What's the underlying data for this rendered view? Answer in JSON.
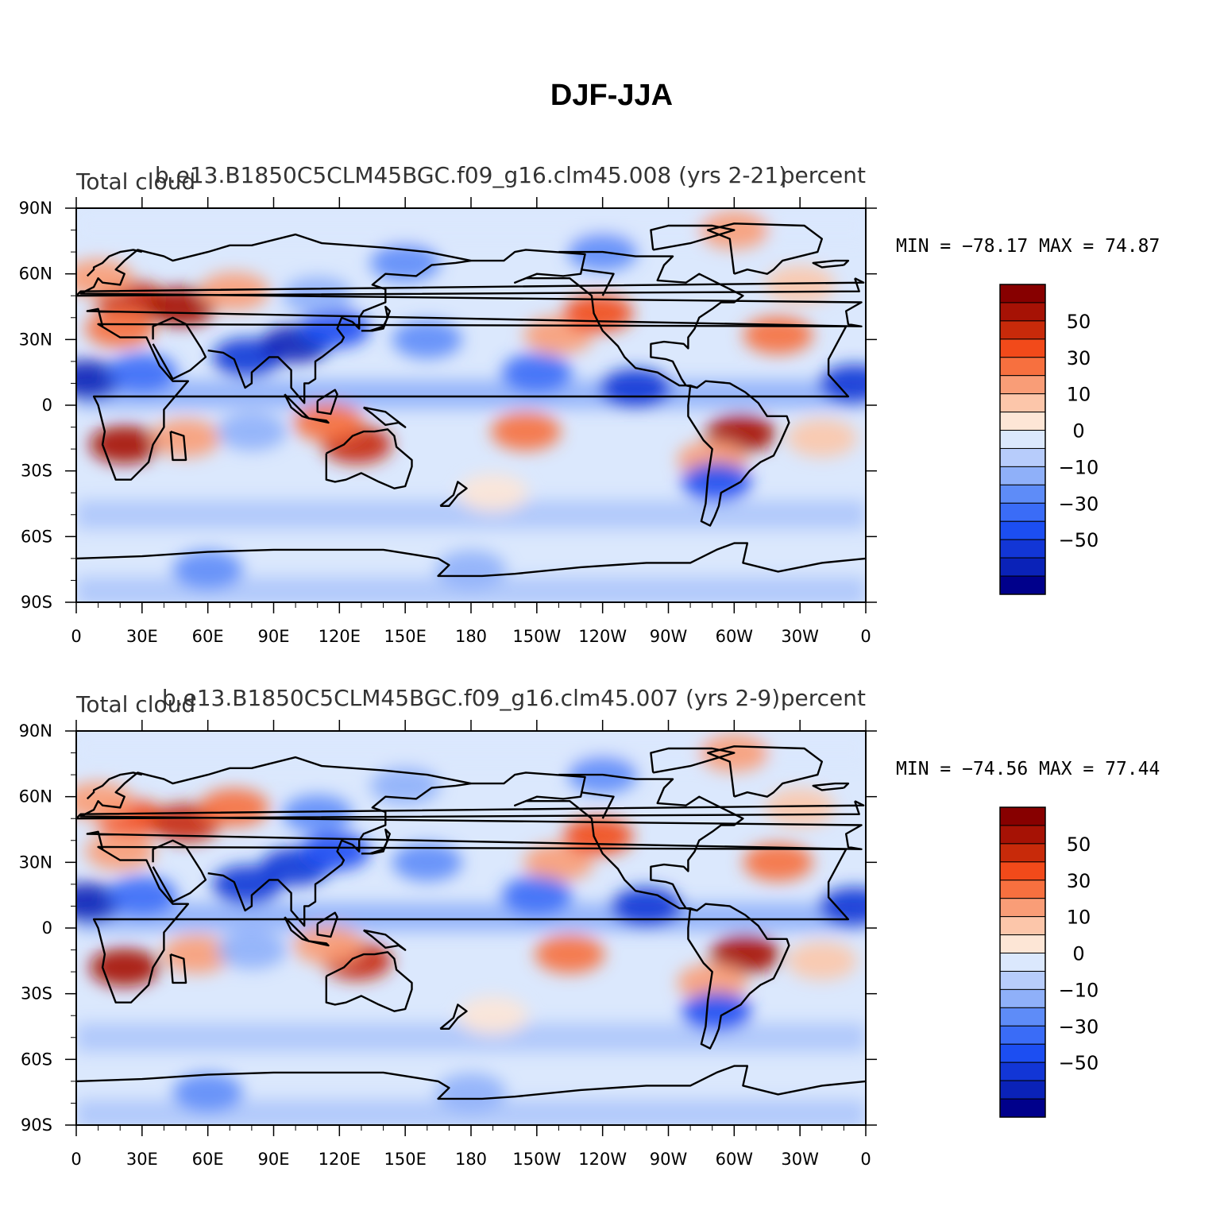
{
  "title": "DJF-JJA",
  "chart_data": [
    {
      "type": "heatmap",
      "subtitle": "b.e13.B1850C5CLM45BGC.f09_g16.clm45.008 (yrs 2-21)",
      "left_label": "Total cloud",
      "right_label": "percent",
      "stats": "MIN =  −78.17  MAX =   74.87",
      "x_ticks": [
        "0",
        "30E",
        "60E",
        "90E",
        "120E",
        "150E",
        "180",
        "150W",
        "120W",
        "90W",
        "60W",
        "30W",
        "0"
      ],
      "y_ticks": [
        "90N",
        "60N",
        "30N",
        "0",
        "30S",
        "60S",
        "90S"
      ],
      "xlim": [
        0,
        360
      ],
      "ylim": [
        -90,
        90
      ],
      "regions": [
        {
          "lon": 25,
          "lat": 48,
          "value": 60
        },
        {
          "lon": 48,
          "lat": 45,
          "value": 70
        },
        {
          "lon": 72,
          "lat": 52,
          "value": 35
        },
        {
          "lon": 10,
          "lat": 58,
          "value": 30
        },
        {
          "lon": 20,
          "lat": 35,
          "value": 40
        },
        {
          "lon": 5,
          "lat": 12,
          "value": -65
        },
        {
          "lon": 30,
          "lat": 15,
          "value": -40
        },
        {
          "lon": 78,
          "lat": 22,
          "value": -55
        },
        {
          "lon": 100,
          "lat": 28,
          "value": -65
        },
        {
          "lon": 118,
          "lat": 35,
          "value": -45
        },
        {
          "lon": 110,
          "lat": 50,
          "value": -20
        },
        {
          "lon": 22,
          "lat": -18,
          "value": 72
        },
        {
          "lon": 50,
          "lat": -15,
          "value": 30
        },
        {
          "lon": 80,
          "lat": -12,
          "value": -20
        },
        {
          "lon": 128,
          "lat": -18,
          "value": 60
        },
        {
          "lon": 115,
          "lat": -8,
          "value": 40
        },
        {
          "lon": 205,
          "lat": -12,
          "value": 45
        },
        {
          "lon": 220,
          "lat": 32,
          "value": 35
        },
        {
          "lon": 238,
          "lat": 42,
          "value": 55
        },
        {
          "lon": 210,
          "lat": 15,
          "value": -35
        },
        {
          "lon": 255,
          "lat": 8,
          "value": -60
        },
        {
          "lon": 303,
          "lat": -13,
          "value": 72
        },
        {
          "lon": 290,
          "lat": -25,
          "value": 30
        },
        {
          "lon": 292,
          "lat": -35,
          "value": -45
        },
        {
          "lon": 320,
          "lat": 32,
          "value": 40
        },
        {
          "lon": 330,
          "lat": 55,
          "value": 25
        },
        {
          "lon": 355,
          "lat": 10,
          "value": -60
        },
        {
          "lon": 160,
          "lat": 30,
          "value": -25
        },
        {
          "lon": 190,
          "lat": -40,
          "value": 10
        },
        {
          "lon": 340,
          "lat": -15,
          "value": 20
        },
        {
          "lon": 300,
          "lat": 80,
          "value": 30
        },
        {
          "lon": 240,
          "lat": 70,
          "value": -30
        },
        {
          "lon": 150,
          "lat": 65,
          "value": -25
        },
        {
          "lon": 180,
          "lat": -75,
          "value": -20
        },
        {
          "lon": 60,
          "lat": -75,
          "value": -25
        }
      ]
    },
    {
      "type": "heatmap",
      "subtitle": "b.e13.B1850C5CLM45BGC.f09_g16.clm45.007 (yrs 2-9)",
      "left_label": "Total cloud",
      "right_label": "percent",
      "stats": "MIN =  −74.56  MAX =   77.44",
      "x_ticks": [
        "0",
        "30E",
        "60E",
        "90E",
        "120E",
        "150E",
        "180",
        "150W",
        "120W",
        "90W",
        "60W",
        "30W",
        "0"
      ],
      "y_ticks": [
        "90N",
        "60N",
        "30N",
        "0",
        "30S",
        "60S",
        "90S"
      ],
      "xlim": [
        0,
        360
      ],
      "ylim": [
        -90,
        90
      ],
      "regions": [
        {
          "lon": 25,
          "lat": 50,
          "value": 55
        },
        {
          "lon": 50,
          "lat": 48,
          "value": 65
        },
        {
          "lon": 72,
          "lat": 55,
          "value": 40
        },
        {
          "lon": 10,
          "lat": 58,
          "value": 35
        },
        {
          "lon": 20,
          "lat": 35,
          "value": 35
        },
        {
          "lon": 5,
          "lat": 12,
          "value": -70
        },
        {
          "lon": 30,
          "lat": 15,
          "value": -35
        },
        {
          "lon": 78,
          "lat": 20,
          "value": -55
        },
        {
          "lon": 100,
          "lat": 28,
          "value": -60
        },
        {
          "lon": 118,
          "lat": 35,
          "value": -50
        },
        {
          "lon": 110,
          "lat": 52,
          "value": -25
        },
        {
          "lon": 22,
          "lat": -18,
          "value": 74
        },
        {
          "lon": 55,
          "lat": -12,
          "value": 30
        },
        {
          "lon": 80,
          "lat": -10,
          "value": -20
        },
        {
          "lon": 128,
          "lat": -15,
          "value": 62
        },
        {
          "lon": 115,
          "lat": -8,
          "value": 35
        },
        {
          "lon": 225,
          "lat": -12,
          "value": 45
        },
        {
          "lon": 220,
          "lat": 30,
          "value": 30
        },
        {
          "lon": 238,
          "lat": 42,
          "value": 50
        },
        {
          "lon": 210,
          "lat": 15,
          "value": -35
        },
        {
          "lon": 260,
          "lat": 10,
          "value": -55
        },
        {
          "lon": 305,
          "lat": -12,
          "value": 74
        },
        {
          "lon": 290,
          "lat": -25,
          "value": 30
        },
        {
          "lon": 292,
          "lat": -38,
          "value": -45
        },
        {
          "lon": 320,
          "lat": 30,
          "value": 40
        },
        {
          "lon": 330,
          "lat": 55,
          "value": 25
        },
        {
          "lon": 355,
          "lat": 10,
          "value": -60
        },
        {
          "lon": 160,
          "lat": 30,
          "value": -25
        },
        {
          "lon": 190,
          "lat": -40,
          "value": 10
        },
        {
          "lon": 340,
          "lat": -15,
          "value": 20
        },
        {
          "lon": 300,
          "lat": 80,
          "value": 35
        },
        {
          "lon": 240,
          "lat": 70,
          "value": -25
        },
        {
          "lon": 150,
          "lat": 65,
          "value": -20
        },
        {
          "lon": 180,
          "lat": -75,
          "value": -20
        },
        {
          "lon": 60,
          "lat": -75,
          "value": -25
        }
      ]
    }
  ],
  "colorbar": {
    "levels": [
      -70,
      -60,
      -50,
      -40,
      -30,
      -20,
      -10,
      0,
      10,
      20,
      30,
      40,
      50,
      60,
      70
    ],
    "colors": [
      "#00008b",
      "#0a22b8",
      "#1236d6",
      "#1c4ef2",
      "#3a6cf7",
      "#5e8cf8",
      "#8fb0f9",
      "#b7ccfb",
      "#dbe8fd",
      "#fde6d6",
      "#fcc6aa",
      "#f99d77",
      "#f7703f",
      "#f24a1a",
      "#c82a0a",
      "#a61205",
      "#870000"
    ],
    "labels": [
      "50",
      "30",
      "10",
      "0",
      "−10",
      "−30",
      "−50"
    ]
  },
  "coastline_color": "#000000"
}
